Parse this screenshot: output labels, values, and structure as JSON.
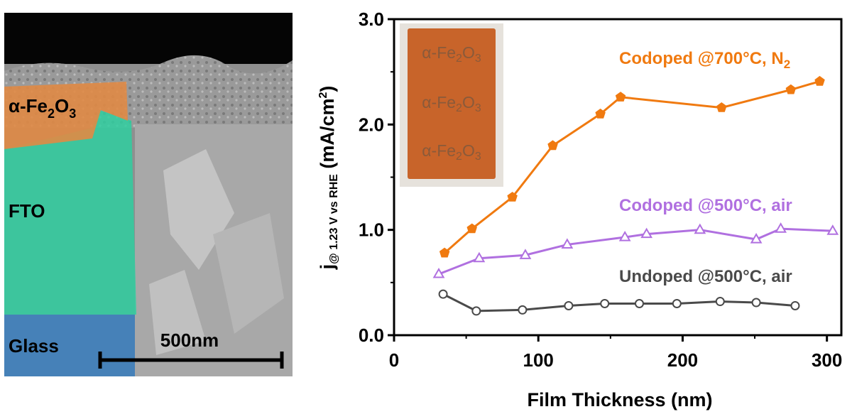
{
  "sem_panel": {
    "layers": [
      {
        "label": "Glass",
        "color": "#3a7fc0"
      },
      {
        "label": "FTO",
        "color": "#2fcfa0"
      },
      {
        "label": "α-Fe",
        "sub1": "2",
        "mid": "O",
        "sub2": "3",
        "color": "#e08a45"
      }
    ],
    "scale_bar_label": "500nm"
  },
  "photo_inset": {
    "labels": [
      {
        "prefix": "α-Fe",
        "sub1": "2",
        "mid": "O",
        "sub2": "3"
      },
      {
        "prefix": "α-Fe",
        "sub1": "2",
        "mid": "O",
        "sub2": "3"
      },
      {
        "prefix": "α-Fe",
        "sub1": "2",
        "mid": "O",
        "sub2": "3"
      }
    ],
    "film_color": "#c8642a"
  },
  "chart_data": {
    "type": "line",
    "xlabel": "Film Thickness (nm)",
    "ylabel": {
      "main": "j",
      "sub": "@ 1.23 V vs RHE",
      "units": " (mA/cm",
      "sup": "2",
      "close": ")"
    },
    "xlim": [
      0,
      310
    ],
    "ylim": [
      0,
      3.0
    ],
    "xticks": [
      0,
      100,
      200,
      300
    ],
    "yticks": [
      0.0,
      1.0,
      2.0,
      3.0
    ],
    "ytick_labels": [
      "0.0",
      "1.0",
      "2.0",
      "3.0"
    ],
    "grid": false,
    "series": [
      {
        "name": "Codoped @700°C, N",
        "name_sub": "2",
        "color": "#f07a10",
        "marker": "pentagon-filled",
        "x": [
          35,
          54,
          82,
          110,
          143,
          157,
          227,
          275,
          295
        ],
        "y": [
          0.78,
          1.01,
          1.31,
          1.8,
          2.1,
          2.26,
          2.16,
          2.33,
          2.41
        ]
      },
      {
        "name": "Codoped @500°C, air",
        "color": "#b070e0",
        "marker": "triangle-open",
        "x": [
          31,
          59,
          91,
          120,
          160,
          175,
          212,
          251,
          268,
          304
        ],
        "y": [
          0.58,
          0.73,
          0.76,
          0.86,
          0.93,
          0.96,
          1.0,
          0.91,
          1.01,
          0.99
        ]
      },
      {
        "name": "Undoped @500°C, air",
        "color": "#4a4a4a",
        "marker": "circle-open",
        "x": [
          34,
          57,
          89,
          121,
          146,
          170,
          196,
          226,
          251,
          278
        ],
        "y": [
          0.39,
          0.23,
          0.24,
          0.28,
          0.3,
          0.3,
          0.3,
          0.32,
          0.31,
          0.28
        ]
      }
    ]
  }
}
